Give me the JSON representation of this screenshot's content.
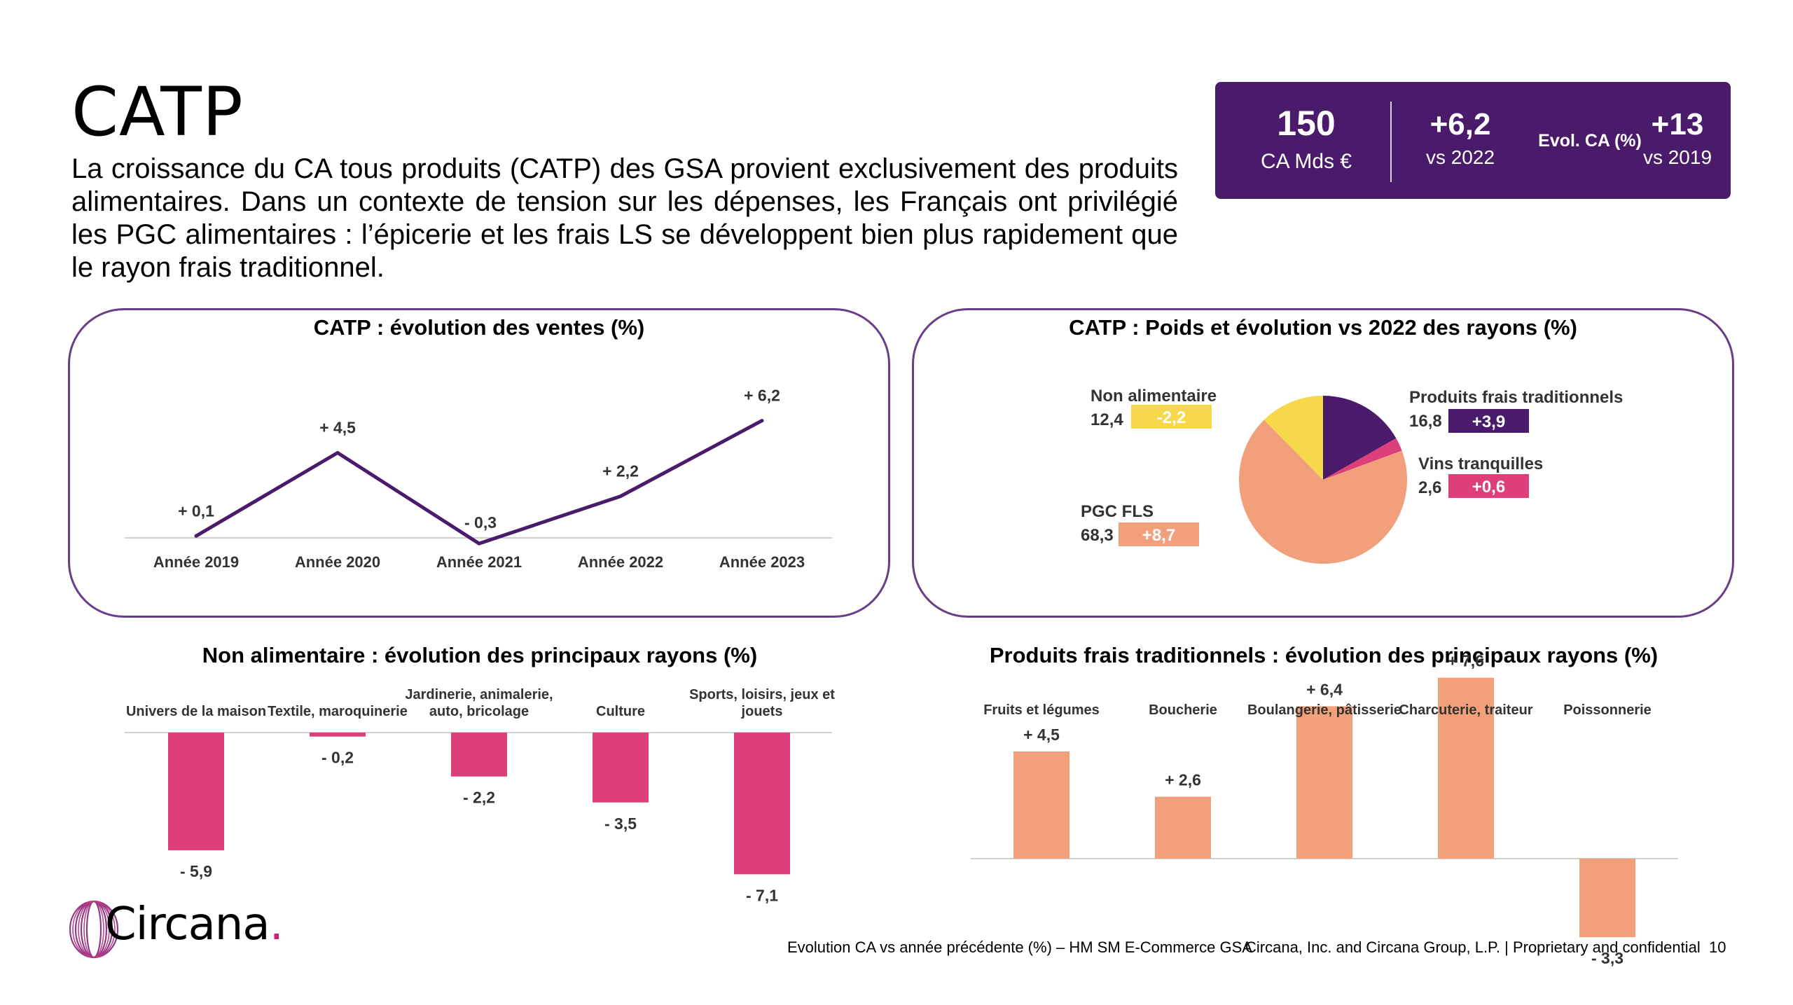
{
  "title": "CATP",
  "intro": "La croissance du CA tous produits (CATP) des GSA provient exclusivement des produits alimentaires. Dans un contexte de tension sur les dépenses, les Français ont privilégié les PGC alimentaires : l’épicerie et les frais LS se développent bien plus rapidement que le rayon frais traditionnel.",
  "kpi": {
    "ca_value": "150",
    "ca_label": "CA Mds €",
    "evol_2022_value": "+6,2",
    "evol_2022_label": "vs 2022",
    "evol_label": "Evol. CA (%)",
    "evol_2019_value": "+13",
    "evol_2019_label": "vs 2019"
  },
  "colors": {
    "purple": "#4a1a6b",
    "pink": "#dc3f7a",
    "salmon": "#f2a07b",
    "yellow": "#f7d84a"
  },
  "chart_data": [
    {
      "type": "line",
      "title": "CATP : évolution des ventes (%)",
      "categories": [
        "Année 2019",
        "Année 2020",
        "Année 2021",
        "Année 2022",
        "Année 2023"
      ],
      "values": [
        0.1,
        4.5,
        -0.3,
        2.2,
        6.2
      ],
      "labels": [
        "+ 0,1",
        "+ 4,5",
        "- 0,3",
        "+ 2,2",
        "+ 6,2"
      ],
      "color": "#4a1a6b"
    },
    {
      "type": "pie",
      "title": "CATP : Poids et évolution vs 2022 des rayons (%)",
      "slices": [
        {
          "name": "Produits frais traditionnels",
          "value": 16.8,
          "value_label": "16,8",
          "evol": "+3,9",
          "color": "#4a1a6b"
        },
        {
          "name": "Vins tranquilles",
          "value": 2.6,
          "value_label": "2,6",
          "evol": "+0,6",
          "color": "#dc3f7a"
        },
        {
          "name": "PGC FLS",
          "value": 68.3,
          "value_label": "68,3",
          "evol": "+8,7",
          "color": "#f2a07b"
        },
        {
          "name": "Non alimentaire",
          "value": 12.4,
          "value_label": "12,4",
          "evol": "-2,2",
          "color": "#f7d84a"
        }
      ]
    },
    {
      "type": "bar",
      "title": "Non alimentaire : évolution des principaux rayons (%)",
      "categories": [
        "Univers de la maison",
        "Textile, maroquinerie",
        "Jardinerie, animalerie, auto, bricolage",
        "Culture",
        "Sports, loisirs, jeux et jouets"
      ],
      "values": [
        -5.9,
        -0.2,
        -2.2,
        -3.5,
        -7.1
      ],
      "labels": [
        "- 5,9",
        "- 0,2",
        "- 2,2",
        "- 3,5",
        "- 7,1"
      ],
      "color": "#dc3f7a"
    },
    {
      "type": "bar",
      "title": "Produits frais traditionnels : évolution des principaux rayons (%)",
      "categories": [
        "Fruits et légumes",
        "Boucherie",
        "Boulangerie, pâtisserie",
        "Charcuterie, traiteur",
        "Poissonnerie"
      ],
      "values": [
        4.5,
        2.6,
        6.4,
        7.6,
        -3.3
      ],
      "labels": [
        "+ 4,5",
        "+ 2,6",
        "+ 6,4",
        "+ 7,6",
        "- 3,3"
      ],
      "color": "#f2a07b"
    }
  ],
  "logo": {
    "text": "Circana",
    "dot": "."
  },
  "footer": {
    "source": "Evolution CA vs année précédente (%) – HM SM E-Commerce GSA",
    "legal": "Circana, Inc. and Circana Group, L.P. |  Proprietary and confidential",
    "page": "10"
  }
}
